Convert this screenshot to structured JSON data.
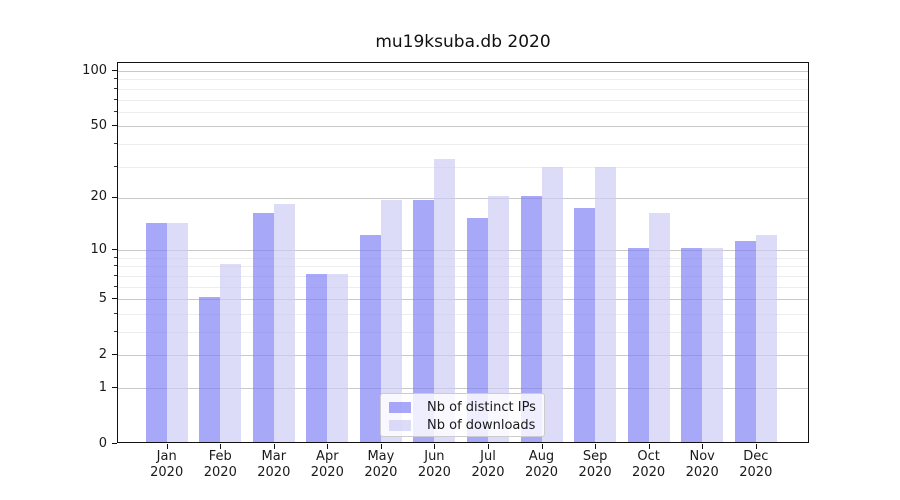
{
  "chart_data": {
    "type": "bar",
    "title": "mu19ksuba.db 2020",
    "categories": [
      "Jan",
      "Feb",
      "Mar",
      "Apr",
      "May",
      "Jun",
      "Jul",
      "Aug",
      "Sep",
      "Oct",
      "Nov",
      "Dec"
    ],
    "x_year_label": "2020",
    "series": [
      {
        "name": "Nb of distinct IPs",
        "color": "rgba(127,127,245,0.68)",
        "values": [
          14,
          5,
          16,
          7,
          12,
          19,
          15,
          20,
          17,
          10,
          10,
          11
        ]
      },
      {
        "name": "Nb of downloads",
        "color": "rgba(204,204,245,0.68)",
        "values": [
          14,
          8,
          18,
          7,
          19,
          32,
          20,
          29,
          29,
          16,
          10,
          12
        ]
      }
    ],
    "xlabel": "",
    "ylabel": "",
    "yscale": "log1p",
    "ylim": [
      0,
      111
    ],
    "y_major_ticks": [
      0,
      1,
      2,
      5,
      10,
      20,
      50,
      100
    ],
    "y_minor_ticks": [
      3,
      4,
      6,
      7,
      8,
      9,
      30,
      40,
      60,
      70,
      80,
      90
    ],
    "grid": "both",
    "legend_position": "lower center"
  },
  "colors": {
    "bar_distinct_ips": "rgba(127,127,245,0.68)",
    "bar_downloads": "rgba(204,204,245,0.68)",
    "grid_major": "#c9c9c9",
    "grid_minor": "#ededed",
    "axis": "#111111",
    "text": "#1a1a1a",
    "legend_border": "#cccccc",
    "legend_background": "rgba(255,255,255,0.8)"
  }
}
